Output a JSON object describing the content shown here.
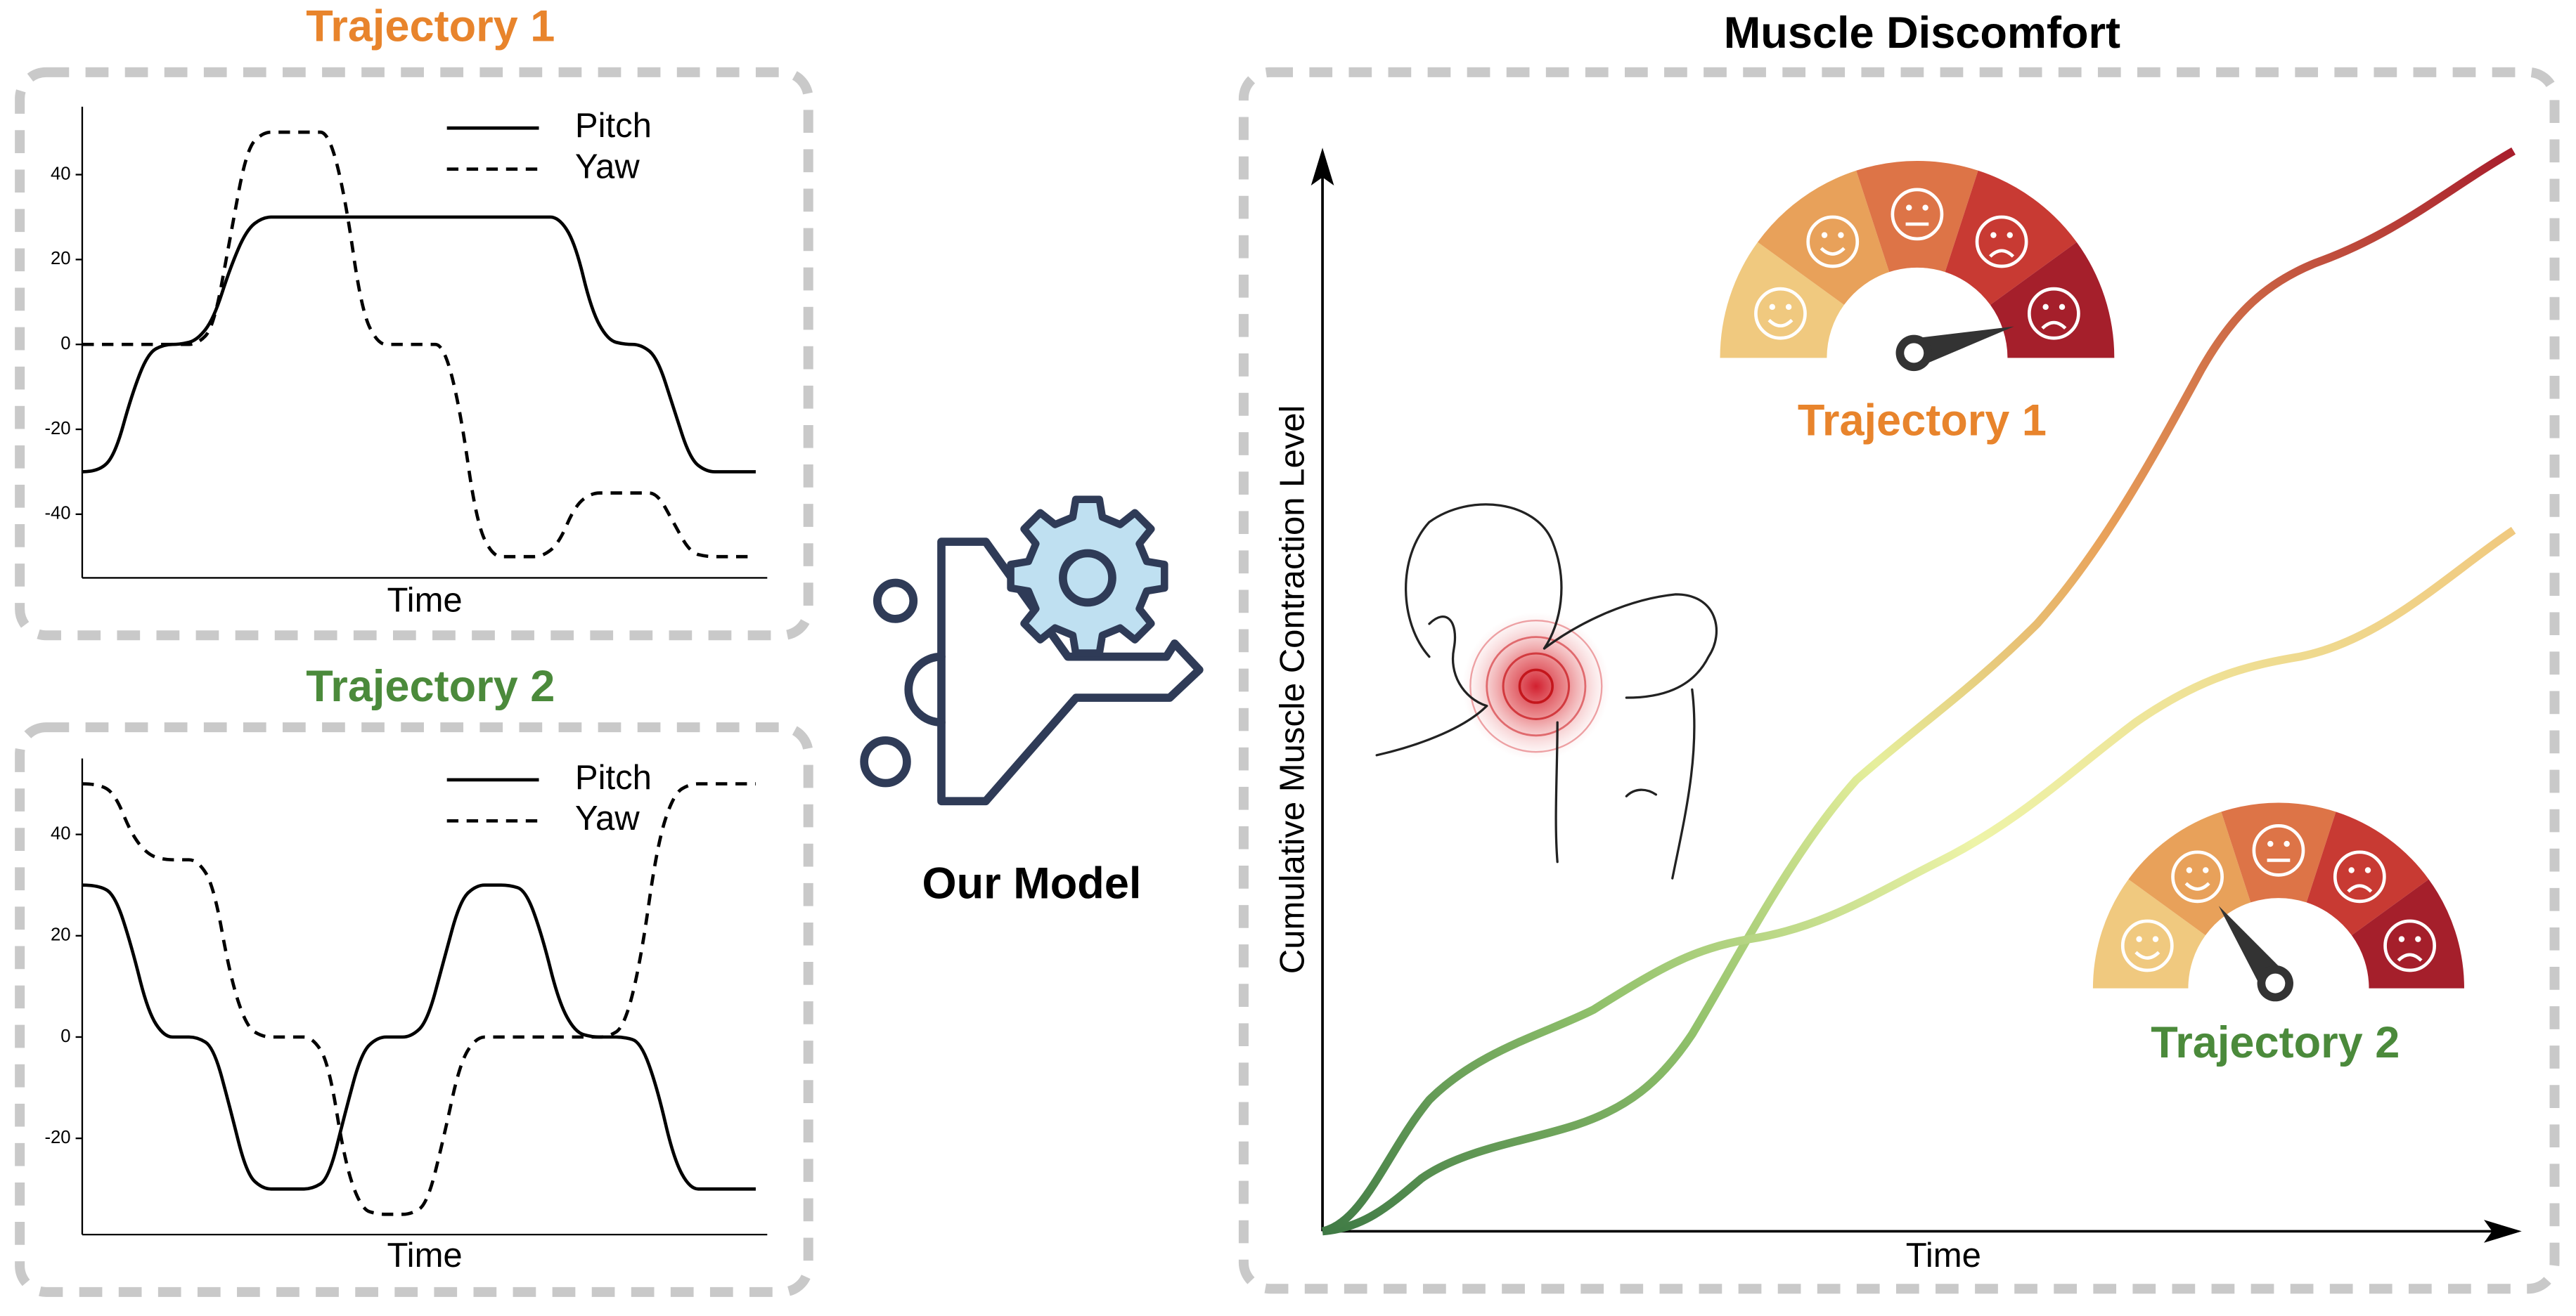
{
  "chart_data": [
    {
      "type": "line",
      "title": "Trajectory 1",
      "title_color": "#e8842c",
      "xlabel": "Time",
      "ylim": [
        -55,
        56
      ],
      "yticks": [
        -40,
        -20,
        0,
        20,
        40
      ],
      "legend": "upper right",
      "series": [
        {
          "name": "Pitch",
          "color": "#000000",
          "linestyle": "solid",
          "values": [
            -30,
            -30,
            -26,
            -12,
            -2,
            0,
            0,
            1,
            6,
            18,
            27,
            30,
            30,
            30,
            30,
            30,
            30,
            30,
            30,
            30,
            30,
            30,
            30,
            30,
            30,
            30,
            30,
            30,
            30,
            30,
            24,
            8,
            1,
            0,
            0,
            -3,
            -15,
            -27,
            -30,
            -30,
            -30,
            -30
          ]
        },
        {
          "name": "Yaw",
          "color": "#000000",
          "linestyle": "dashed",
          "values": [
            0,
            0,
            0,
            0,
            0,
            0,
            0,
            0,
            4,
            25,
            46,
            50,
            50,
            50,
            50,
            50,
            35,
            8,
            0,
            0,
            0,
            0,
            0,
            -15,
            -42,
            -50,
            -50,
            -50,
            -50,
            -47,
            -38,
            -35,
            -35,
            -35,
            -35,
            -35,
            -42,
            -49,
            -50,
            -50,
            -50,
            -50
          ]
        }
      ]
    },
    {
      "type": "line",
      "title": "Trajectory 2",
      "title_color": "#4b8a3b",
      "xlabel": "Time",
      "ylim": [
        -39,
        55
      ],
      "yticks": [
        -20,
        0,
        20,
        40
      ],
      "legend": "upper right",
      "series": [
        {
          "name": "Pitch",
          "color": "#000000",
          "linestyle": "solid",
          "values": [
            30,
            30,
            28,
            18,
            5,
            0,
            0,
            0,
            -2,
            -14,
            -27,
            -30,
            -30,
            -30,
            -30,
            -28,
            -15,
            -3,
            0,
            0,
            0,
            3,
            15,
            27,
            30,
            30,
            30,
            29,
            20,
            7,
            1,
            0,
            0,
            0,
            -1,
            -10,
            -24,
            -30,
            -30,
            -30,
            -30,
            -30
          ]
        },
        {
          "name": "Yaw",
          "color": "#000000",
          "linestyle": "dashed",
          "values": [
            50,
            50,
            48,
            40,
            36,
            35,
            35,
            35,
            30,
            12,
            2,
            0,
            0,
            0,
            0,
            -5,
            -25,
            -34,
            -35,
            -35,
            -35,
            -33,
            -20,
            -5,
            0,
            0,
            0,
            0,
            0,
            0,
            0,
            0,
            0,
            2,
            15,
            38,
            48,
            50,
            50,
            50,
            50,
            50
          ]
        }
      ]
    }
  ],
  "model": {
    "label": "Our Model"
  },
  "discomfort": {
    "title": "Muscle Discomfort",
    "ylabel": "Cumulative Muscle Contraction Level",
    "xlabel": "Time",
    "gauges": [
      {
        "label": "Trajectory 1"
      },
      {
        "label": "Trajectory 2"
      }
    ]
  }
}
